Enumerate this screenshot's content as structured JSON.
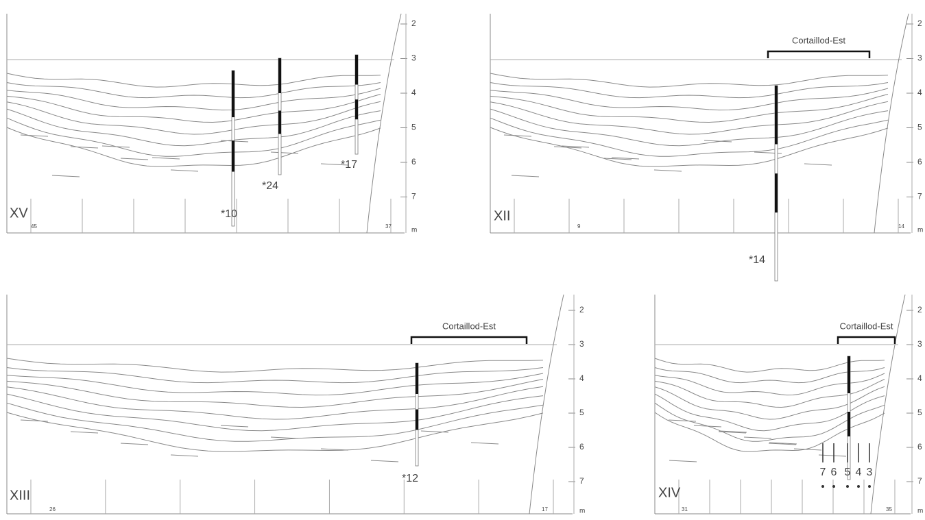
{
  "panels": [
    {
      "label": "XV",
      "stations": [
        "45",
        "37"
      ],
      "depth_ticks": [
        "2",
        "3",
        "4",
        "5",
        "6",
        "7"
      ],
      "depth_unit": "m",
      "cores": [
        "*10",
        "*24",
        "*17"
      ]
    },
    {
      "label": "XII",
      "site": "Cortaillod-Est",
      "stations": [
        "9",
        "14"
      ],
      "depth_ticks": [
        "2",
        "3",
        "4",
        "5",
        "6",
        "7"
      ],
      "depth_unit": "m",
      "cores": [
        "*14"
      ]
    },
    {
      "label": "XIII",
      "site": "Cortaillod-Est",
      "stations": [
        "26",
        "17"
      ],
      "depth_ticks": [
        "2",
        "3",
        "4",
        "5",
        "6",
        "7"
      ],
      "depth_unit": "m",
      "cores": [
        "*12"
      ]
    },
    {
      "label": "XIV",
      "site": "Cortaillod-Est",
      "stations": [
        "31",
        "35"
      ],
      "depth_ticks": [
        "2",
        "3",
        "4",
        "5",
        "6",
        "7"
      ],
      "depth_unit": "m",
      "core_layers": [
        "7",
        "6",
        "5",
        "4",
        "3"
      ]
    }
  ]
}
